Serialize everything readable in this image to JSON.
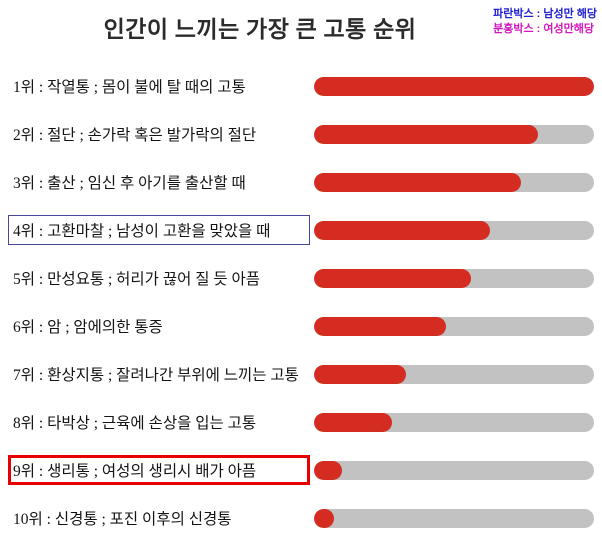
{
  "title": "인간이 느끼는 가장 큰 고통 순위",
  "legend": {
    "male_note": "파란박스 : 남성만 해당",
    "female_note": "분홍박스 : 여성만해당"
  },
  "colors": {
    "bar_fill": "#d42c20",
    "bar_track": "#c2c2c2",
    "legend_male": "#2020d0",
    "legend_female": "#d018c0",
    "male_box": "#46469b",
    "female_box": "#e60000",
    "title_color": "#2b2b2b",
    "label_color": "#141414"
  },
  "chart_data": {
    "type": "bar",
    "orientation": "horizontal",
    "title": "인간이 느끼는 가장 큰 고통 순위",
    "categories": [
      "1위 : 작열통 ; 몸이 불에 탈 때의 고통",
      "2위 : 절단 ; 손가락 혹은 발가락의 절단",
      "3위 : 출산 ; 임신 후 아기를 출산할 때",
      "4위 : 고환마찰 ; 남성이 고환을 맞았을 때",
      "5위 : 만성요통 ; 허리가 끊어 질 듯 아픔",
      "6위 : 암 ; 암에의한 통증",
      "7위 : 환상지통 ; 잘려나간 부위에 느끼는 고통",
      "8위 : 타박상 ; 근육에 손상을 입는 고통",
      "9위 : 생리통 ; 여성의 생리시 배가 아픔",
      "10위 : 신경통 ; 포진 이후의 신경통"
    ],
    "values": [
      100,
      80,
      74,
      63,
      56,
      47,
      33,
      28,
      10,
      7
    ],
    "value_unit": "percent_of_full_bar",
    "xlim": [
      0,
      100
    ],
    "grid": false,
    "legend_entries": [
      "파란박스 : 남성만 해당",
      "분홍박스 : 여성만해당"
    ],
    "highlighted_rows": [
      {
        "index": 3,
        "box": "blue"
      },
      {
        "index": 8,
        "box": "red"
      }
    ]
  },
  "rows": [
    {
      "label": "1위 : 작열통 ; 몸이 불에 탈 때의 고통",
      "value": 100,
      "box": "none"
    },
    {
      "label": "2위 : 절단 ; 손가락 혹은 발가락의 절단",
      "value": 80,
      "box": "none"
    },
    {
      "label": "3위 : 출산 ; 임신 후 아기를 출산할 때",
      "value": 74,
      "box": "none"
    },
    {
      "label": "4위 : 고환마찰 ; 남성이 고환을 맞았을 때",
      "value": 63,
      "box": "blue"
    },
    {
      "label": "5위 : 만성요통 ; 허리가 끊어 질 듯 아픔",
      "value": 56,
      "box": "none"
    },
    {
      "label": "6위 : 암 ; 암에의한 통증",
      "value": 47,
      "box": "none"
    },
    {
      "label": "7위 : 환상지통 ; 잘려나간 부위에 느끼는 고통",
      "value": 33,
      "box": "none"
    },
    {
      "label": "8위 : 타박상 ; 근육에 손상을 입는 고통",
      "value": 28,
      "box": "none"
    },
    {
      "label": "9위 : 생리통 ; 여성의 생리시 배가 아픔",
      "value": 10,
      "box": "red"
    },
    {
      "label": "10위 : 신경통 ; 포진 이후의 신경통",
      "value": 7,
      "box": "none"
    }
  ]
}
